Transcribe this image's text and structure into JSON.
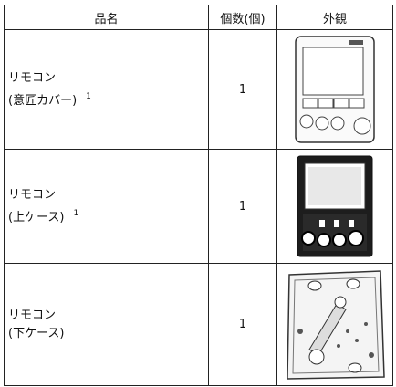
{
  "table": {
    "header": [
      "品名",
      "個数(個)",
      "外観"
    ],
    "rows": [
      {
        "name": [
          "リモコン",
          "(意匠カバー)"
        ],
        "note": "1",
        "count": "1"
      },
      {
        "name": [
          "リモコン",
          "(上ケース)"
        ],
        "note": "1",
        "count": "1"
      },
      {
        "name": [
          "リモコン",
          "(下ケース)"
        ],
        "count": "1"
      }
    ]
  }
}
